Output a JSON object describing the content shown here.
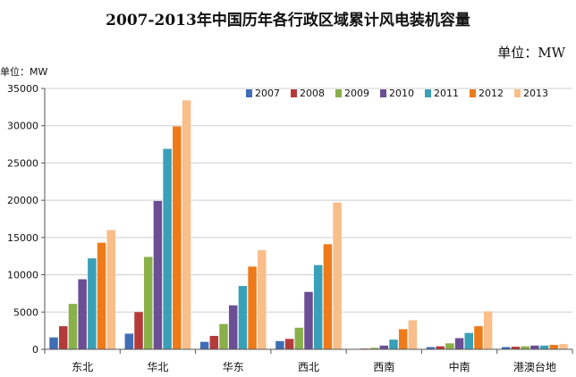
{
  "header": {
    "title": "2007-2013年中国历年各行政区域累计风电装机容量",
    "unit_top": "单位：MW",
    "unit_axis": "单位：MW"
  },
  "colors": {
    "2007": "#3F6EB5",
    "2008": "#B53A3A",
    "2009": "#8AB04A",
    "2010": "#6B4E93",
    "2011": "#3AA0B8",
    "2012": "#EE7A19",
    "2013": "#F9BE8A"
  },
  "chart_data": {
    "type": "bar",
    "title": "2007-2013年中国历年各行政区域累计风电装机容量",
    "ylabel": "单位：MW",
    "ylim": [
      0,
      35000
    ],
    "yticks": [
      0,
      5000,
      10000,
      15000,
      20000,
      25000,
      30000,
      35000
    ],
    "grid": true,
    "legend_position": "top-right",
    "categories": [
      "东北",
      "华北",
      "华东",
      "西北",
      "西南",
      "中南",
      "港澳台地"
    ],
    "series": [
      {
        "name": "2007",
        "values": [
          1600,
          2100,
          1000,
          1100,
          50,
          300,
          300
        ]
      },
      {
        "name": "2008",
        "values": [
          3100,
          5000,
          1800,
          1400,
          100,
          400,
          350
        ]
      },
      {
        "name": "2009",
        "values": [
          6100,
          12400,
          3400,
          2900,
          200,
          800,
          400
        ]
      },
      {
        "name": "2010",
        "values": [
          9400,
          19900,
          5900,
          7700,
          500,
          1500,
          500
        ]
      },
      {
        "name": "2011",
        "values": [
          12200,
          26900,
          8500,
          11300,
          1300,
          2200,
          500
        ]
      },
      {
        "name": "2012",
        "values": [
          14300,
          29900,
          11100,
          14100,
          2700,
          3100,
          600
        ]
      },
      {
        "name": "2013",
        "values": [
          16000,
          33400,
          13300,
          19700,
          3900,
          5100,
          700
        ]
      }
    ]
  }
}
